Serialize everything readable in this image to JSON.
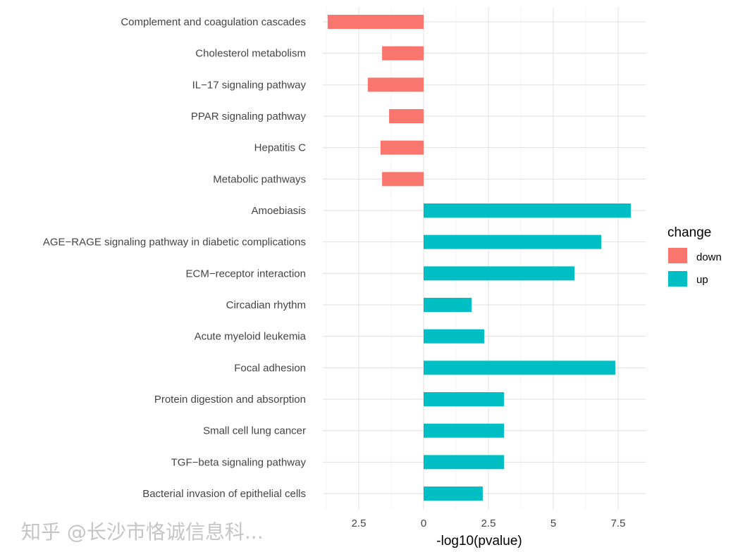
{
  "chart_data": {
    "type": "bar",
    "orientation": "horizontal",
    "xlabel": "-log10(pvalue)",
    "ylabel": "",
    "xlim": [
      -3.9,
      8.6
    ],
    "x_ticks": [
      -2.5,
      0,
      2.5,
      5,
      7.5
    ],
    "x_tick_labels": [
      "2.5",
      "0",
      "2.5",
      "5",
      "7.5"
    ],
    "grid": true,
    "legend": {
      "title": "change",
      "position": "right",
      "entries": [
        {
          "label": "down",
          "color": "#F8766D"
        },
        {
          "label": "up",
          "color": "#00BFC4"
        }
      ]
    },
    "categories": [
      "Complement and coagulation cascades",
      "Cholesterol metabolism",
      "IL−17 signaling pathway",
      "PPAR signaling pathway",
      "Hepatitis C",
      "Metabolic pathways",
      "Amoebiasis",
      "AGE−RAGE signaling pathway in diabetic complications",
      "ECM−receptor interaction",
      "Circadian rhythm",
      "Acute myeloid leukemia",
      "Focal adhesion",
      "Protein digestion and absorption",
      "Small cell lung cancer",
      "TGF−beta signaling pathway",
      "Bacterial invasion of epithelial cells"
    ],
    "values": [
      -3.7,
      -1.6,
      -2.15,
      -1.33,
      -1.66,
      -1.6,
      7.99,
      6.85,
      5.82,
      1.85,
      2.34,
      7.39,
      3.1,
      3.1,
      3.1,
      2.28
    ],
    "change": [
      "down",
      "down",
      "down",
      "down",
      "down",
      "down",
      "up",
      "up",
      "up",
      "up",
      "up",
      "up",
      "up",
      "up",
      "up",
      "up"
    ]
  },
  "watermark": "知乎 @长沙市恪诚信息科..."
}
